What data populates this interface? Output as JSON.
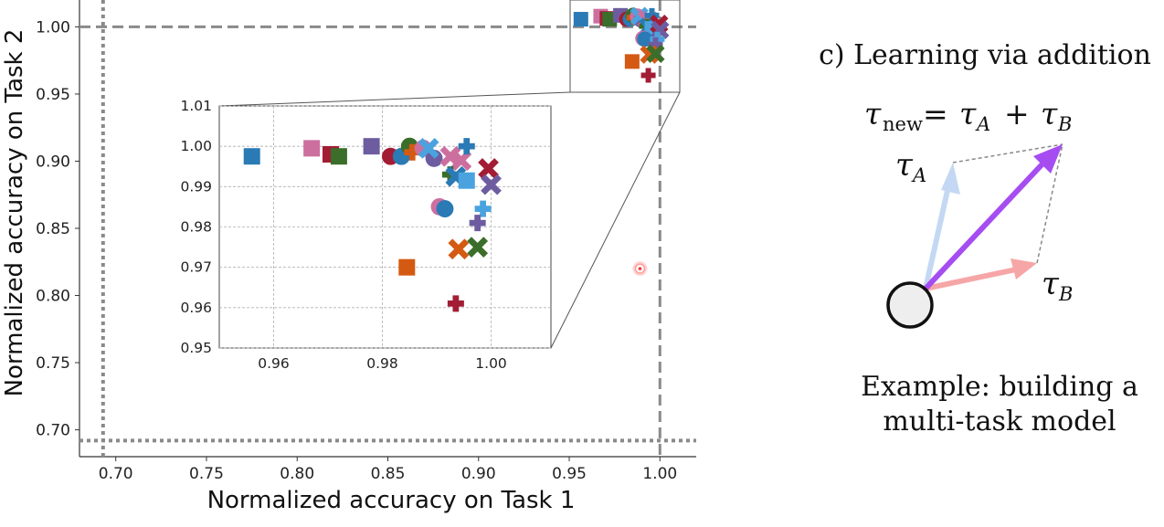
{
  "chart_data": [
    {
      "type": "scatter",
      "title": "",
      "xlabel": "Normalized accuracy on Task 1",
      "ylabel": "Normalized accuracy on Task 2",
      "xlim": [
        0.68,
        1.02
      ],
      "ylim": [
        0.68,
        1.02
      ],
      "xticks": [
        "0.70",
        "0.75",
        "0.80",
        "0.85",
        "0.90",
        "0.95",
        "1.00"
      ],
      "yticks": [
        "0.70",
        "0.75",
        "0.80",
        "0.85",
        "0.90",
        "0.95",
        "1.00"
      ],
      "grid": false,
      "reference_lines": [
        {
          "axis": "y",
          "value": 1.0,
          "style": "dashed"
        },
        {
          "axis": "x",
          "value": 1.0,
          "style": "dashed"
        },
        {
          "axis": "x",
          "value": 0.693,
          "style": "dotted"
        },
        {
          "axis": "y",
          "value": 0.692,
          "style": "dotted"
        }
      ],
      "highlight_point": {
        "x": 0.989,
        "y": 0.82,
        "color": "#ff3333"
      }
    },
    {
      "type": "scatter",
      "title": "",
      "xlabel": "",
      "ylabel": "",
      "xlim": [
        0.95,
        1.011
      ],
      "ylim": [
        0.95,
        1.01
      ],
      "xticks": [
        "0.96",
        "0.98",
        "1.00"
      ],
      "yticks": [
        "0.95",
        "0.96",
        "0.97",
        "0.98",
        "0.99",
        "1.00",
        "1.01"
      ],
      "grid": true,
      "points": [
        {
          "x": 0.956,
          "y": 0.9975,
          "marker": "square",
          "color": "#2a7ab5"
        },
        {
          "x": 0.967,
          "y": 0.9995,
          "marker": "square",
          "color": "#cc6f9f"
        },
        {
          "x": 0.9705,
          "y": 0.998,
          "marker": "square",
          "color": "#a21d34"
        },
        {
          "x": 0.972,
          "y": 0.9975,
          "marker": "square",
          "color": "#3b6e2a"
        },
        {
          "x": 0.978,
          "y": 1.0,
          "marker": "square",
          "color": "#6e5ca0"
        },
        {
          "x": 0.9815,
          "y": 0.9975,
          "marker": "circle",
          "color": "#a21d34"
        },
        {
          "x": 0.9835,
          "y": 0.9975,
          "marker": "circle",
          "color": "#2a7ab5"
        },
        {
          "x": 0.985,
          "y": 1.0,
          "marker": "circle",
          "color": "#3b6e2a"
        },
        {
          "x": 0.9855,
          "y": 0.9985,
          "marker": "plus",
          "color": "#d45a13"
        },
        {
          "x": 0.9875,
          "y": 0.9995,
          "marker": "circle",
          "color": "#cc6f9f"
        },
        {
          "x": 0.9895,
          "y": 0.997,
          "marker": "circle",
          "color": "#6e5ca0"
        },
        {
          "x": 0.9885,
          "y": 0.9995,
          "marker": "x",
          "color": "#4aa3df"
        },
        {
          "x": 0.9925,
          "y": 0.9975,
          "marker": "x",
          "color": "#cc6f9f"
        },
        {
          "x": 0.9945,
          "y": 0.9965,
          "marker": "x",
          "color": "#cc6f9f"
        },
        {
          "x": 0.9955,
          "y": 1.0,
          "marker": "plus",
          "color": "#2a7ab5"
        },
        {
          "x": 0.9925,
          "y": 0.993,
          "marker": "plus",
          "color": "#3b6e2a"
        },
        {
          "x": 0.9935,
          "y": 0.9925,
          "marker": "x",
          "color": "#2a7ab5"
        },
        {
          "x": 0.9955,
          "y": 0.9915,
          "marker": "square",
          "color": "#4aa3df"
        },
        {
          "x": 0.9995,
          "y": 0.9945,
          "marker": "x",
          "color": "#a21d34"
        },
        {
          "x": 1.0,
          "y": 0.9905,
          "marker": "x",
          "color": "#6e5ca0"
        },
        {
          "x": 0.9905,
          "y": 0.985,
          "marker": "circle",
          "color": "#cc6f9f"
        },
        {
          "x": 0.9915,
          "y": 0.9845,
          "marker": "circle",
          "color": "#2a7ab5"
        },
        {
          "x": 0.9985,
          "y": 0.9845,
          "marker": "plus",
          "color": "#4aa3df"
        },
        {
          "x": 0.9975,
          "y": 0.981,
          "marker": "plus",
          "color": "#6e5ca0"
        },
        {
          "x": 0.9845,
          "y": 0.97,
          "marker": "square",
          "color": "#d45a13"
        },
        {
          "x": 0.994,
          "y": 0.9745,
          "marker": "x",
          "color": "#d45a13"
        },
        {
          "x": 0.9975,
          "y": 0.975,
          "marker": "x",
          "color": "#3b6e2a"
        },
        {
          "x": 0.9935,
          "y": 0.961,
          "marker": "plus",
          "color": "#a21d34"
        }
      ]
    }
  ],
  "diagram": {
    "heading": "c) Learning via addition",
    "label_a": "τ",
    "label_a_sub": "A",
    "label_b": "τ",
    "label_b_sub": "B",
    "caption_line1": "Example: building a",
    "caption_line2": "multi-task model",
    "colors": {
      "arrow_a": "#c4d8f3",
      "arrow_b": "#f6a6a6",
      "arrow_sum": "#a64df2",
      "dashed": "#888888"
    }
  }
}
